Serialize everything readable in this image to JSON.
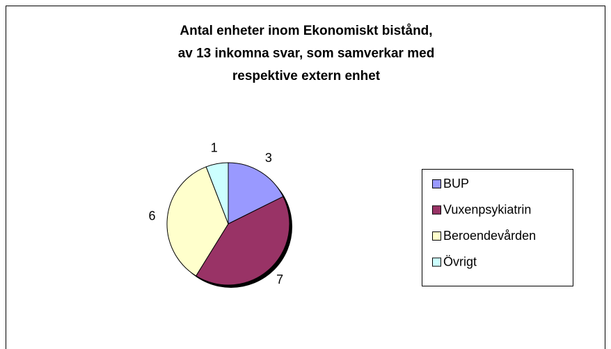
{
  "chart_data": {
    "type": "pie",
    "title": [
      "Antal enheter inom Ekonomiskt bistånd,",
      "av 13 inkomna svar, som samverkar med",
      "respektive extern enhet"
    ],
    "categories": [
      "BUP",
      "Vuxenpsykiatrin",
      "Beroendevården",
      "Övrigt"
    ],
    "values": [
      3,
      7,
      6,
      1
    ],
    "colors": [
      "#9999ff",
      "#993366",
      "#ffffcc",
      "#ccffff"
    ],
    "legend": "right"
  }
}
